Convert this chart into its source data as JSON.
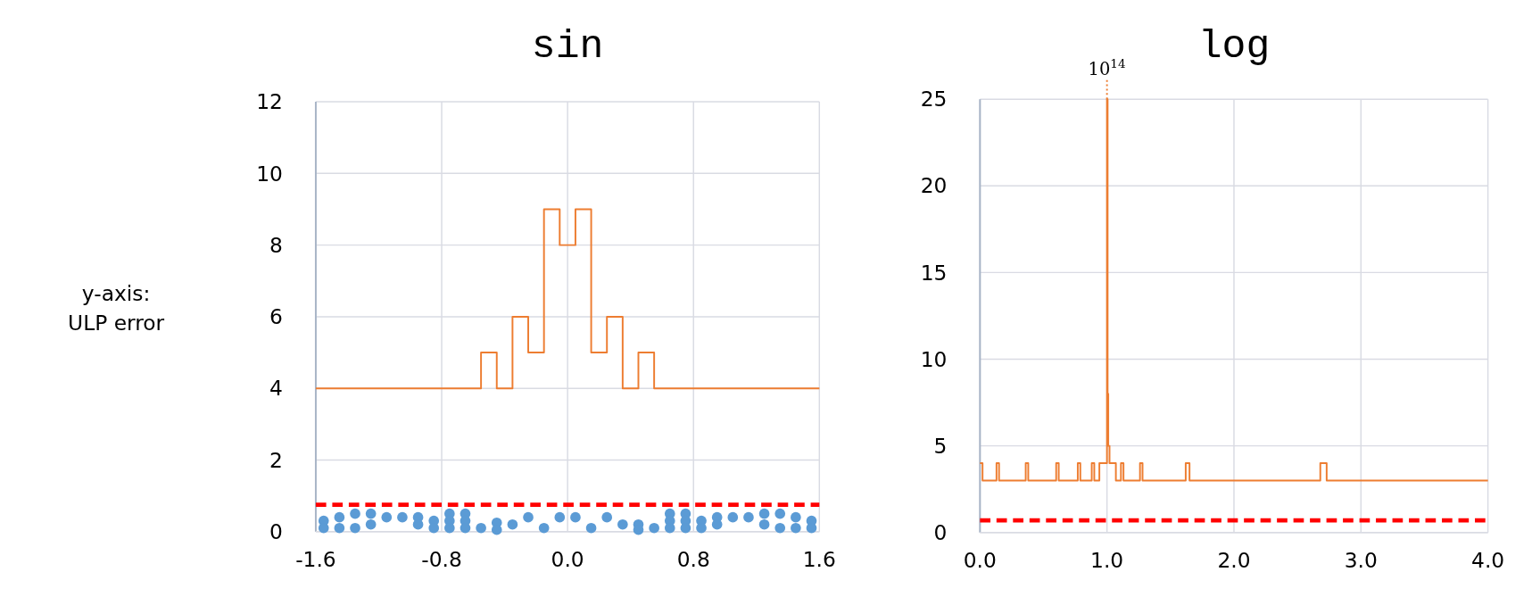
{
  "chart_data": [
    {
      "type": "step",
      "title": "sin",
      "ylabel": "y-axis: ULP error",
      "xlim": [
        -1.6,
        1.6
      ],
      "ylim": [
        0,
        12
      ],
      "xticks": [
        -1.6,
        -0.8,
        {
          "value": 0,
          "label": "0.0"
        },
        0.8,
        1.6
      ],
      "yticks": [
        0,
        2,
        4,
        6,
        8,
        10,
        12
      ],
      "grid": true,
      "series": [
        {
          "type": "step",
          "color": "#ed7d31",
          "marker": "none",
          "x": [
            -1.6,
            -0.55,
            -0.45,
            -0.35,
            -0.25,
            -0.15,
            -0.05,
            0.05,
            0.15,
            0.25,
            0.35,
            0.45,
            0.55,
            1.6
          ],
          "values": [
            4,
            5,
            4,
            6,
            5,
            9,
            8,
            9,
            5,
            6,
            4,
            5,
            4,
            4
          ]
        },
        {
          "type": "scatter",
          "color": "#5b9bd5",
          "marker": "circle",
          "x": [
            -1.55,
            -1.55,
            -1.45,
            -1.45,
            -1.35,
            -1.35,
            -1.25,
            -1.25,
            -1.15,
            -1.05,
            -0.95,
            -0.95,
            -0.85,
            -0.85,
            -0.75,
            -0.75,
            -0.75,
            -0.65,
            -0.65,
            -0.65,
            -0.55,
            -0.45,
            -0.45,
            -0.35,
            -0.25,
            -0.15,
            -0.05,
            0.05,
            0.15,
            0.25,
            0.35,
            0.45,
            0.45,
            0.55,
            0.65,
            0.65,
            0.65,
            0.75,
            0.75,
            0.75,
            0.85,
            0.85,
            0.95,
            0.95,
            1.05,
            1.15,
            1.25,
            1.25,
            1.35,
            1.35,
            1.45,
            1.45,
            1.55,
            1.55
          ],
          "values": [
            0.3,
            0.1,
            0.4,
            0.1,
            0.5,
            0.1,
            0.5,
            0.2,
            0.4,
            0.4,
            0.4,
            0.2,
            0.3,
            0.1,
            0.5,
            0.3,
            0.1,
            0.5,
            0.3,
            0.1,
            0.1,
            0.25,
            0.05,
            0.2,
            0.4,
            0.1,
            0.4,
            0.4,
            0.1,
            0.4,
            0.2,
            0.2,
            0.05,
            0.1,
            0.5,
            0.3,
            0.1,
            0.5,
            0.3,
            0.1,
            0.3,
            0.1,
            0.4,
            0.2,
            0.4,
            0.4,
            0.5,
            0.2,
            0.5,
            0.1,
            0.4,
            0.1,
            0.3,
            0.1
          ]
        }
      ],
      "ref_lines": [
        {
          "axis": "y",
          "value": 0.75,
          "color": "#ff0000",
          "line_style": "dashed"
        }
      ]
    },
    {
      "type": "step",
      "title": "log",
      "xlim": [
        0,
        4
      ],
      "ylim": [
        0,
        25
      ],
      "xticks": [
        {
          "value": 0,
          "label": "0.0"
        },
        {
          "value": 1,
          "label": "1.0"
        },
        {
          "value": 2,
          "label": "2.0"
        },
        {
          "value": 3,
          "label": "3.0"
        },
        {
          "value": 4,
          "label": "4.0"
        }
      ],
      "yticks": [
        0,
        5,
        10,
        15,
        20,
        25
      ],
      "grid": true,
      "series": [
        {
          "type": "step",
          "color": "#ed7d31",
          "marker": "none",
          "x": [
            0,
            0.02,
            0.13,
            0.15,
            0.36,
            0.38,
            0.6,
            0.62,
            0.77,
            0.79,
            0.88,
            0.9,
            0.94,
            1.0,
            1.005,
            1.01,
            1.02,
            1.07,
            1.11,
            1.13,
            1.26,
            1.28,
            1.62,
            1.65,
            2.68,
            2.73,
            4.0
          ],
          "values": [
            4,
            3,
            4,
            3,
            4,
            3,
            4,
            3,
            4,
            3,
            4,
            3,
            4,
            25,
            8,
            5,
            4,
            3,
            4,
            3,
            4,
            3,
            4,
            3,
            4,
            3,
            3
          ]
        }
      ],
      "ref_lines": [
        {
          "axis": "y",
          "value": 0.7,
          "color": "#ff0000",
          "line_style": "dashed"
        }
      ],
      "annotations": [
        {
          "text": "10$^{14}$",
          "x": 1.0,
          "y": 25
        }
      ]
    }
  ]
}
